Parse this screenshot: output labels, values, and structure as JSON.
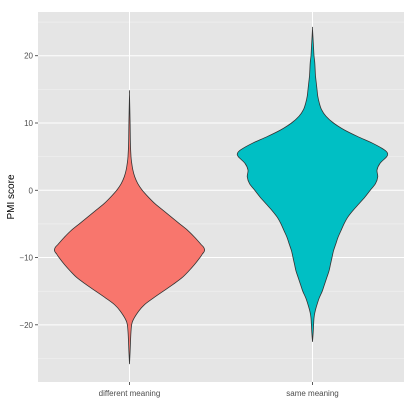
{
  "chart_data": {
    "type": "violin",
    "title": "",
    "xlabel": "",
    "ylabel": "PMI score",
    "ylim": [
      -28.5,
      26.5
    ],
    "grid": true,
    "legend": "none",
    "categories": [
      "different meaning",
      "same meaning"
    ],
    "y_ticks": [
      -20,
      -10,
      0,
      10,
      20
    ],
    "y_tick_labels": [
      "−20",
      "−10",
      "0",
      "10",
      "20"
    ],
    "colors": {
      "panel_bg": "#e5e5e5",
      "grid": "#ffffff",
      "outline": "#333333"
    },
    "series": [
      {
        "category": "different meaning",
        "fill": "#f8766d",
        "y_min": -25.8,
        "y_max": 14.3,
        "density_profile": [
          [
            -25.8,
            0.0
          ],
          [
            -24.0,
            0.008
          ],
          [
            -21.0,
            0.02
          ],
          [
            -19.5,
            0.04
          ],
          [
            -18.0,
            0.12
          ],
          [
            -17.0,
            0.2
          ],
          [
            -16.0,
            0.32
          ],
          [
            -15.0,
            0.45
          ],
          [
            -14.0,
            0.58
          ],
          [
            -13.0,
            0.7
          ],
          [
            -12.0,
            0.79
          ],
          [
            -11.0,
            0.87
          ],
          [
            -10.0,
            0.94
          ],
          [
            -9.5,
            0.97
          ],
          [
            -9.0,
            1.0
          ],
          [
            -8.5,
            0.99
          ],
          [
            -8.0,
            0.95
          ],
          [
            -7.0,
            0.87
          ],
          [
            -6.0,
            0.78
          ],
          [
            -5.0,
            0.67
          ],
          [
            -4.0,
            0.56
          ],
          [
            -3.0,
            0.45
          ],
          [
            -2.0,
            0.34
          ],
          [
            -1.0,
            0.25
          ],
          [
            0.0,
            0.17
          ],
          [
            1.0,
            0.11
          ],
          [
            2.0,
            0.07
          ],
          [
            3.0,
            0.045
          ],
          [
            4.0,
            0.03
          ],
          [
            5.0,
            0.02
          ],
          [
            7.0,
            0.012
          ],
          [
            10.0,
            0.008
          ],
          [
            14.3,
            0.0
          ]
        ]
      },
      {
        "category": "same meaning",
        "fill": "#00bfc4",
        "y_min": -22.5,
        "y_max": 24.0,
        "density_profile": [
          [
            -22.5,
            0.0
          ],
          [
            -21.0,
            0.01
          ],
          [
            -19.0,
            0.02
          ],
          [
            -18.0,
            0.035
          ],
          [
            -17.0,
            0.06
          ],
          [
            -16.0,
            0.09
          ],
          [
            -15.0,
            0.13
          ],
          [
            -14.0,
            0.16
          ],
          [
            -13.0,
            0.19
          ],
          [
            -12.0,
            0.22
          ],
          [
            -11.0,
            0.24
          ],
          [
            -10.0,
            0.26
          ],
          [
            -9.0,
            0.28
          ],
          [
            -8.0,
            0.31
          ],
          [
            -7.0,
            0.34
          ],
          [
            -6.0,
            0.38
          ],
          [
            -5.0,
            0.42
          ],
          [
            -4.0,
            0.47
          ],
          [
            -3.0,
            0.54
          ],
          [
            -2.0,
            0.62
          ],
          [
            -1.0,
            0.7
          ],
          [
            0.0,
            0.77
          ],
          [
            1.0,
            0.84
          ],
          [
            2.0,
            0.87
          ],
          [
            3.0,
            0.86
          ],
          [
            4.0,
            0.9
          ],
          [
            5.0,
            0.99
          ],
          [
            5.5,
            1.0
          ],
          [
            6.0,
            0.96
          ],
          [
            7.0,
            0.8
          ],
          [
            8.0,
            0.6
          ],
          [
            9.0,
            0.42
          ],
          [
            10.0,
            0.28
          ],
          [
            11.0,
            0.18
          ],
          [
            12.0,
            0.12
          ],
          [
            13.0,
            0.09
          ],
          [
            14.0,
            0.07
          ],
          [
            15.0,
            0.06
          ],
          [
            16.0,
            0.05
          ],
          [
            17.0,
            0.04
          ],
          [
            18.0,
            0.035
          ],
          [
            19.0,
            0.03
          ],
          [
            20.0,
            0.02
          ],
          [
            21.0,
            0.015
          ],
          [
            22.0,
            0.01
          ],
          [
            24.0,
            0.0
          ]
        ]
      }
    ]
  }
}
